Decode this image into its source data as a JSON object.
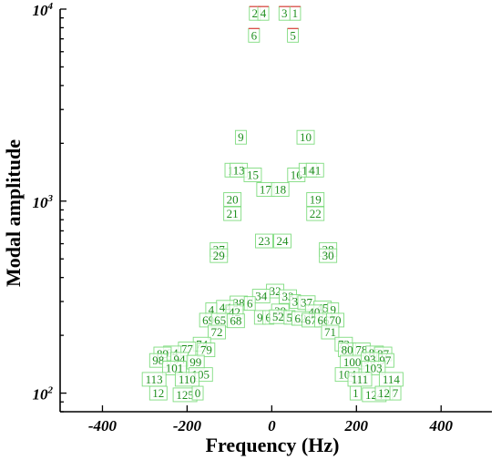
{
  "chart_data": {
    "type": "scatter",
    "xlabel": "Frequency (Hz)",
    "ylabel": "Modal amplitude",
    "xlim": [
      -500,
      520
    ],
    "ylim": [
      80,
      10000
    ],
    "y_scale": "log",
    "x_ticks": [
      -400,
      -200,
      0,
      200,
      400
    ],
    "y_ticks": [
      {
        "value": 100,
        "base": "10",
        "exp": "2"
      },
      {
        "value": 1000,
        "base": "10",
        "exp": "3"
      },
      {
        "value": 10000,
        "base": "10",
        "exp": "4"
      }
    ],
    "points": [
      {
        "label": "1",
        "x": 55,
        "y": 9500
      },
      {
        "label": "2",
        "x": -40,
        "y": 9500
      },
      {
        "label": "3",
        "x": 30,
        "y": 9500
      },
      {
        "label": "4",
        "x": -20,
        "y": 9500
      },
      {
        "label": "5",
        "x": 50,
        "y": 7300
      },
      {
        "label": "6",
        "x": -42,
        "y": 7300
      },
      {
        "label": "9",
        "x": -73,
        "y": 2150
      },
      {
        "label": "10",
        "x": 80,
        "y": 2150
      },
      {
        "label": "11",
        "x": -90,
        "y": 1450
      },
      {
        "label": "13",
        "x": -78,
        "y": 1450
      },
      {
        "label": "15",
        "x": -45,
        "y": 1370
      },
      {
        "label": "16",
        "x": 58,
        "y": 1370
      },
      {
        "label": "14",
        "x": 85,
        "y": 1450
      },
      {
        "label": "41",
        "x": 102,
        "y": 1450
      },
      {
        "label": "17",
        "x": -15,
        "y": 1150
      },
      {
        "label": "18",
        "x": 20,
        "y": 1150
      },
      {
        "label": "20",
        "x": -93,
        "y": 1020
      },
      {
        "label": "19",
        "x": 103,
        "y": 1020
      },
      {
        "label": "21",
        "x": -93,
        "y": 860
      },
      {
        "label": "22",
        "x": 103,
        "y": 860
      },
      {
        "label": "23",
        "x": -18,
        "y": 620
      },
      {
        "label": "24",
        "x": 25,
        "y": 620
      },
      {
        "label": "27",
        "x": -125,
        "y": 560
      },
      {
        "label": "29",
        "x": -125,
        "y": 520
      },
      {
        "label": "28",
        "x": 133,
        "y": 560
      },
      {
        "label": "30",
        "x": 133,
        "y": 520
      },
      {
        "label": "32",
        "x": 8,
        "y": 340
      },
      {
        "label": "34",
        "x": -25,
        "y": 320
      },
      {
        "label": "33",
        "x": 38,
        "y": 318
      },
      {
        "label": "3",
        "x": 55,
        "y": 300
      },
      {
        "label": "37",
        "x": 82,
        "y": 296
      },
      {
        "label": "38",
        "x": -78,
        "y": 295
      },
      {
        "label": "6",
        "x": -52,
        "y": 293
      },
      {
        "label": "44",
        "x": -110,
        "y": 280
      },
      {
        "label": "45",
        "x": 120,
        "y": 278
      },
      {
        "label": "4",
        "x": -143,
        "y": 272
      },
      {
        "label": "9",
        "x": 145,
        "y": 272
      },
      {
        "label": "42",
        "x": -88,
        "y": 265
      },
      {
        "label": "40",
        "x": 100,
        "y": 265
      },
      {
        "label": "39",
        "x": 20,
        "y": 268
      },
      {
        "label": "69",
        "x": -150,
        "y": 240
      },
      {
        "label": "65",
        "x": -122,
        "y": 240
      },
      {
        "label": "68",
        "x": -85,
        "y": 238
      },
      {
        "label": "9",
        "x": -28,
        "y": 248
      },
      {
        "label": "6",
        "x": -8,
        "y": 248
      },
      {
        "label": "52",
        "x": 15,
        "y": 250
      },
      {
        "label": "5",
        "x": 42,
        "y": 248
      },
      {
        "label": "62",
        "x": 68,
        "y": 245
      },
      {
        "label": "67",
        "x": 92,
        "y": 240
      },
      {
        "label": "66",
        "x": 122,
        "y": 240
      },
      {
        "label": "70",
        "x": 150,
        "y": 240
      },
      {
        "label": "72",
        "x": -130,
        "y": 208
      },
      {
        "label": "71",
        "x": 138,
        "y": 208
      },
      {
        "label": "74",
        "x": -165,
        "y": 180
      },
      {
        "label": "73",
        "x": 170,
        "y": 180
      },
      {
        "label": "77",
        "x": -200,
        "y": 170
      },
      {
        "label": "79",
        "x": -155,
        "y": 168
      },
      {
        "label": "80",
        "x": 178,
        "y": 168
      },
      {
        "label": "78",
        "x": 212,
        "y": 168
      },
      {
        "label": "84",
        "x": -235,
        "y": 162
      },
      {
        "label": "83",
        "x": 243,
        "y": 162
      },
      {
        "label": "89",
        "x": -258,
        "y": 160
      },
      {
        "label": "87",
        "x": 263,
        "y": 160
      },
      {
        "label": "98",
        "x": -268,
        "y": 148
      },
      {
        "label": "94",
        "x": -218,
        "y": 150
      },
      {
        "label": "99",
        "x": -180,
        "y": 145
      },
      {
        "label": "100",
        "x": 190,
        "y": 145
      },
      {
        "label": "97",
        "x": 268,
        "y": 148
      },
      {
        "label": "93",
        "x": 232,
        "y": 150
      },
      {
        "label": "101",
        "x": -230,
        "y": 135
      },
      {
        "label": "103",
        "x": 240,
        "y": 135
      },
      {
        "label": "105",
        "x": -168,
        "y": 125
      },
      {
        "label": "104",
        "x": 178,
        "y": 125
      },
      {
        "label": "113",
        "x": -278,
        "y": 118
      },
      {
        "label": "110",
        "x": -200,
        "y": 118
      },
      {
        "label": "111",
        "x": 208,
        "y": 118
      },
      {
        "label": "114",
        "x": 282,
        "y": 118
      },
      {
        "label": "12",
        "x": -268,
        "y": 100
      },
      {
        "label": "125",
        "x": -205,
        "y": 98
      },
      {
        "label": "0",
        "x": -175,
        "y": 100
      },
      {
        "label": "1",
        "x": 198,
        "y": 100
      },
      {
        "label": "124",
        "x": 242,
        "y": 98
      },
      {
        "label": "12",
        "x": 265,
        "y": 100
      },
      {
        "label": "7",
        "x": 292,
        "y": 100
      }
    ]
  }
}
